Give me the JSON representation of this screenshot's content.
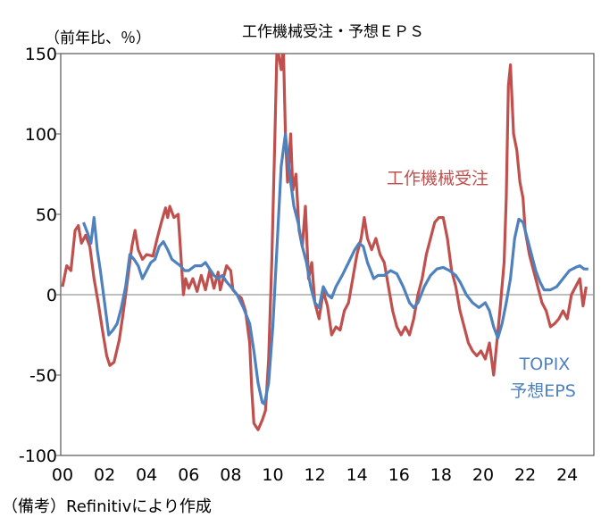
{
  "chart_data": {
    "type": "line",
    "title": "工作機械受注・予想ＥＰＳ",
    "ylabel": "（前年比、％）",
    "xlabel": "",
    "footnote": "（備考）Refinitivにより作成",
    "ylim": [
      -100,
      150
    ],
    "xlim": [
      2000,
      2025.2
    ],
    "yticks": [
      "150",
      "100",
      "50",
      "0",
      "-50",
      "-100"
    ],
    "ytick_values": [
      150,
      100,
      50,
      0,
      -50,
      -100
    ],
    "xticks": [
      "00",
      "02",
      "04",
      "06",
      "08",
      "10",
      "12",
      "14",
      "16",
      "18",
      "20",
      "22",
      "24"
    ],
    "grid": false,
    "zero_line": true,
    "series": [
      {
        "name": "工作機械受注",
        "color": "#c0504d",
        "x": [
          2000.0,
          2000.2,
          2000.4,
          2000.6,
          2000.75,
          2000.9,
          2001.1,
          2001.3,
          2001.5,
          2001.7,
          2001.9,
          2002.1,
          2002.25,
          2002.45,
          2002.7,
          2002.9,
          2003.1,
          2003.3,
          2003.45,
          2003.6,
          2003.8,
          2004.0,
          2004.3,
          2004.5,
          2004.7,
          2004.9,
          2005.0,
          2005.1,
          2005.3,
          2005.5,
          2005.6,
          2005.75,
          2005.85,
          2006.0,
          2006.2,
          2006.4,
          2006.6,
          2006.8,
          2007.0,
          2007.2,
          2007.4,
          2007.5,
          2007.6,
          2007.8,
          2008.0,
          2008.1,
          2008.3,
          2008.5,
          2008.7,
          2008.9,
          2009.0,
          2009.1,
          2009.3,
          2009.5,
          2009.65,
          2009.8,
          2009.95,
          2010.1,
          2010.2,
          2010.4,
          2010.5,
          2010.6,
          2010.7,
          2010.85,
          2010.95,
          2011.1,
          2011.25,
          2011.4,
          2011.55,
          2011.7,
          2011.85,
          2012.0,
          2012.2,
          2012.4,
          2012.6,
          2012.8,
          2013.0,
          2013.2,
          2013.4,
          2013.6,
          2013.8,
          2014.0,
          2014.2,
          2014.35,
          2014.5,
          2014.7,
          2014.9,
          2015.1,
          2015.3,
          2015.5,
          2015.7,
          2015.9,
          2016.1,
          2016.3,
          2016.5,
          2016.7,
          2016.9,
          2017.1,
          2017.3,
          2017.5,
          2017.7,
          2017.9,
          2018.1,
          2018.3,
          2018.5,
          2018.7,
          2018.9,
          2019.1,
          2019.3,
          2019.5,
          2019.7,
          2019.9,
          2020.1,
          2020.3,
          2020.5,
          2020.65,
          2020.8,
          2021.0,
          2021.1,
          2021.2,
          2021.3,
          2021.45,
          2021.6,
          2021.75,
          2021.9,
          2022.0,
          2022.2,
          2022.4,
          2022.6,
          2022.8,
          2023.0,
          2023.2,
          2023.4,
          2023.6,
          2023.8,
          2024.0,
          2024.2,
          2024.4,
          2024.6,
          2024.75,
          2024.9
        ],
        "values": [
          5,
          18,
          15,
          40,
          43,
          32,
          37,
          30,
          10,
          -5,
          -22,
          -38,
          -44,
          -42,
          -28,
          -10,
          10,
          30,
          40,
          28,
          22,
          25,
          24,
          35,
          45,
          54,
          48,
          55,
          48,
          50,
          30,
          0,
          10,
          4,
          10,
          2,
          12,
          3,
          15,
          4,
          14,
          3,
          8,
          18,
          15,
          3,
          0,
          -2,
          -10,
          -30,
          -60,
          -80,
          -84,
          -78,
          -72,
          -40,
          20,
          100,
          155,
          140,
          155,
          100,
          70,
          100,
          65,
          75,
          40,
          30,
          55,
          10,
          20,
          -5,
          -15,
          2,
          -7,
          -25,
          -20,
          -22,
          -10,
          -5,
          10,
          25,
          35,
          48,
          35,
          28,
          35,
          25,
          20,
          5,
          -10,
          -20,
          -25,
          -20,
          -25,
          -15,
          0,
          10,
          25,
          35,
          45,
          48,
          48,
          35,
          15,
          5,
          -10,
          -20,
          -30,
          -35,
          -38,
          -35,
          -40,
          -30,
          -50,
          -30,
          -10,
          20,
          60,
          130,
          143,
          100,
          90,
          70,
          60,
          40,
          25,
          15,
          5,
          -5,
          -10,
          -20,
          -18,
          -15,
          -10,
          -15,
          0,
          5,
          10,
          -7,
          5
        ]
      },
      {
        "name": "TOPIX予想EPS",
        "label_lines": [
          "TOPIX",
          "予想EPS"
        ],
        "color": "#4f81bd",
        "x": [
          2001.0,
          2001.2,
          2001.35,
          2001.5,
          2001.65,
          2001.8,
          2002.0,
          2002.2,
          2002.4,
          2002.6,
          2002.8,
          2003.0,
          2003.2,
          2003.4,
          2003.6,
          2003.8,
          2004.0,
          2004.2,
          2004.4,
          2004.6,
          2004.8,
          2005.0,
          2005.2,
          2005.4,
          2005.6,
          2005.8,
          2006.0,
          2006.3,
          2006.6,
          2006.8,
          2007.0,
          2007.2,
          2007.4,
          2007.6,
          2007.8,
          2008.0,
          2008.3,
          2008.6,
          2008.9,
          2009.1,
          2009.3,
          2009.5,
          2009.6,
          2009.8,
          2010.0,
          2010.2,
          2010.4,
          2010.6,
          2010.8,
          2011.0,
          2011.2,
          2011.4,
          2011.6,
          2011.8,
          2012.0,
          2012.2,
          2012.4,
          2012.6,
          2012.8,
          2013.0,
          2013.3,
          2013.6,
          2013.9,
          2014.1,
          2014.3,
          2014.5,
          2014.8,
          2015.0,
          2015.3,
          2015.6,
          2015.9,
          2016.2,
          2016.5,
          2016.7,
          2016.9,
          2017.2,
          2017.5,
          2017.8,
          2018.1,
          2018.4,
          2018.7,
          2018.9,
          2019.2,
          2019.5,
          2019.8,
          2020.1,
          2020.3,
          2020.5,
          2020.7,
          2020.9,
          2021.1,
          2021.3,
          2021.5,
          2021.7,
          2021.9,
          2022.1,
          2022.3,
          2022.5,
          2022.7,
          2022.9,
          2023.2,
          2023.5,
          2023.8,
          2024.1,
          2024.4,
          2024.6,
          2024.8,
          2025.0
        ],
        "values": [
          45,
          38,
          32,
          48,
          28,
          15,
          -5,
          -25,
          -22,
          -18,
          -8,
          5,
          25,
          22,
          18,
          10,
          15,
          20,
          22,
          30,
          33,
          28,
          22,
          20,
          18,
          15,
          15,
          18,
          18,
          20,
          16,
          12,
          10,
          12,
          8,
          5,
          0,
          -8,
          -18,
          -35,
          -55,
          -67,
          -68,
          -55,
          -20,
          30,
          80,
          100,
          75,
          55,
          45,
          30,
          20,
          5,
          -5,
          -8,
          5,
          0,
          -2,
          5,
          12,
          20,
          28,
          32,
          30,
          20,
          10,
          12,
          12,
          15,
          13,
          5,
          -5,
          -8,
          -5,
          5,
          12,
          16,
          17,
          15,
          12,
          8,
          0,
          -5,
          -8,
          -5,
          -10,
          -20,
          -27,
          -18,
          -5,
          10,
          35,
          47,
          45,
          35,
          25,
          15,
          8,
          3,
          3,
          5,
          10,
          15,
          17,
          18,
          16,
          16
        ]
      }
    ]
  }
}
